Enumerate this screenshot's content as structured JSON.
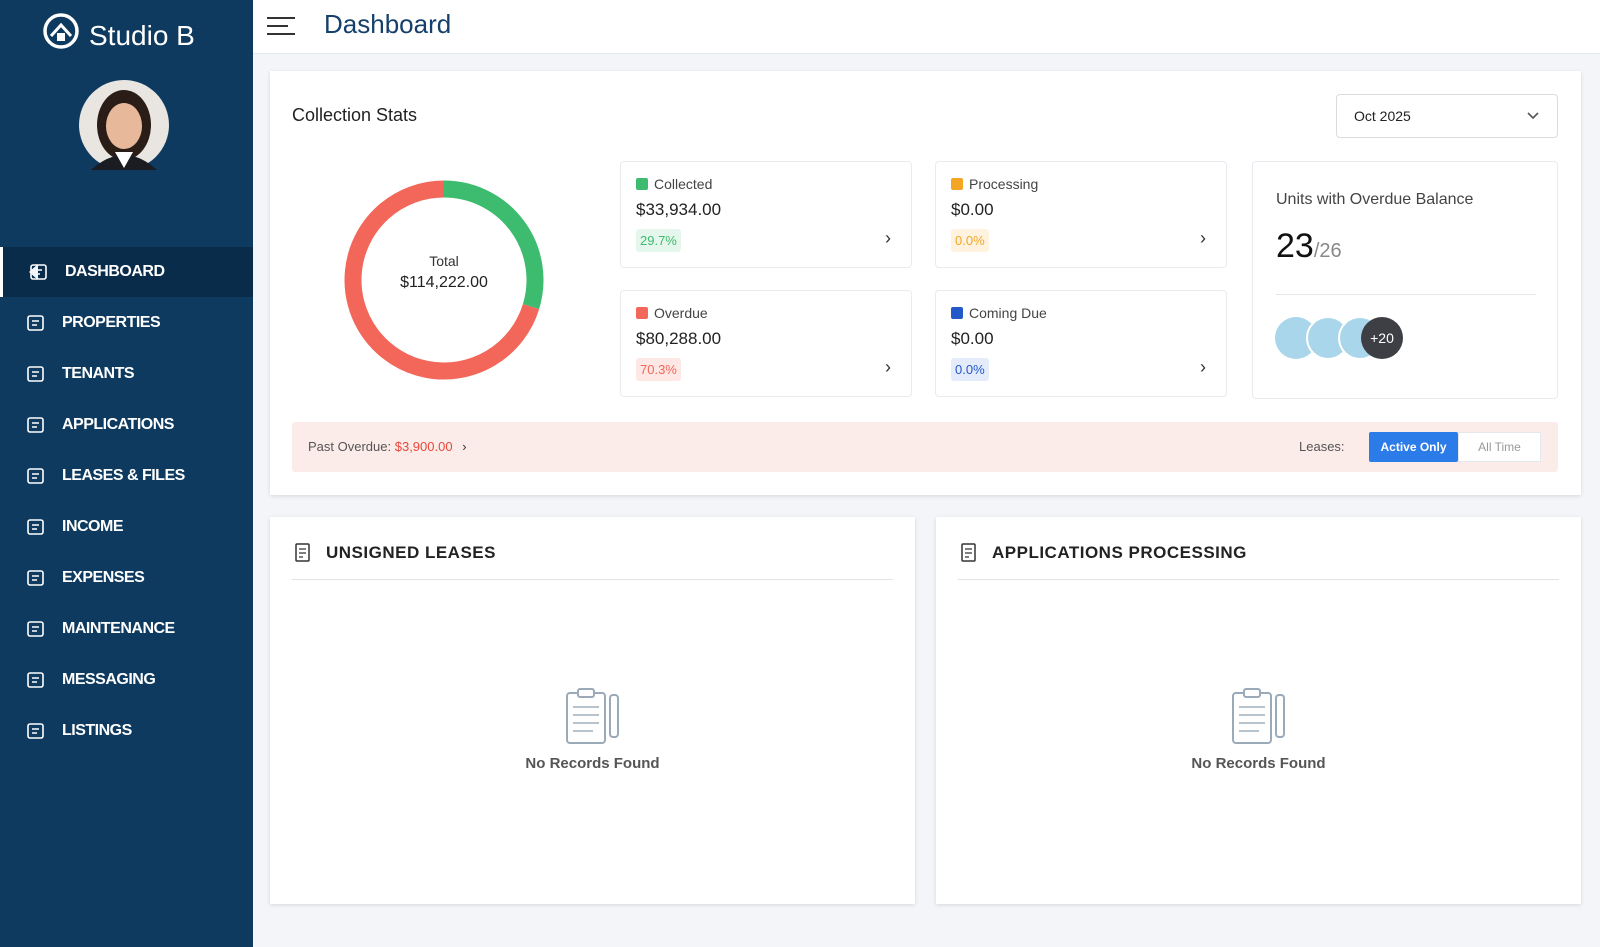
{
  "sidebar": {
    "brand": "Studio B",
    "nav": [
      "DASHBOARD",
      "PROPERTIES",
      "TENANTS",
      "APPLICATIONS",
      "LEASES & FILES",
      "INCOME",
      "EXPENSES",
      "MAINTENANCE",
      "MESSAGING",
      "LISTINGS"
    ]
  },
  "header": {
    "title": "Dashboard"
  },
  "collection_stats": {
    "title": "Collection Stats",
    "period": "Oct 2025",
    "total_label": "Total",
    "total": "$114,222.00",
    "stats": [
      {
        "name": "Collected",
        "value": 33934,
        "amount": "$33,934.00",
        "percent": "29.7%",
        "color": "#3dbb6f"
      },
      {
        "name": "Processing",
        "value": 0,
        "amount": "$0.00",
        "percent": "0.0%",
        "color": "#f5a524"
      },
      {
        "name": "Overdue",
        "value": 80288,
        "amount": "$80,288.00",
        "percent": "70.3%",
        "color": "#f2675a"
      },
      {
        "name": "Coming Due",
        "value": 0,
        "amount": "$0.00",
        "percent": "0.0%",
        "color": "#2358c9"
      }
    ],
    "units": {
      "title": "Units with Overdue Balance",
      "count": "23",
      "total": "/26",
      "more": "+20"
    },
    "past_overdue": {
      "label": "Past Overdue:",
      "amount": "$3,900.00"
    },
    "leases": {
      "label": "Leases:",
      "options": [
        "Active Only",
        "All Time"
      ]
    }
  },
  "panels": [
    {
      "title": "UNSIGNED LEASES",
      "empty": "No Records Found"
    },
    {
      "title": "APPLICATIONS PROCESSING",
      "empty": "No Records Found"
    }
  ]
}
